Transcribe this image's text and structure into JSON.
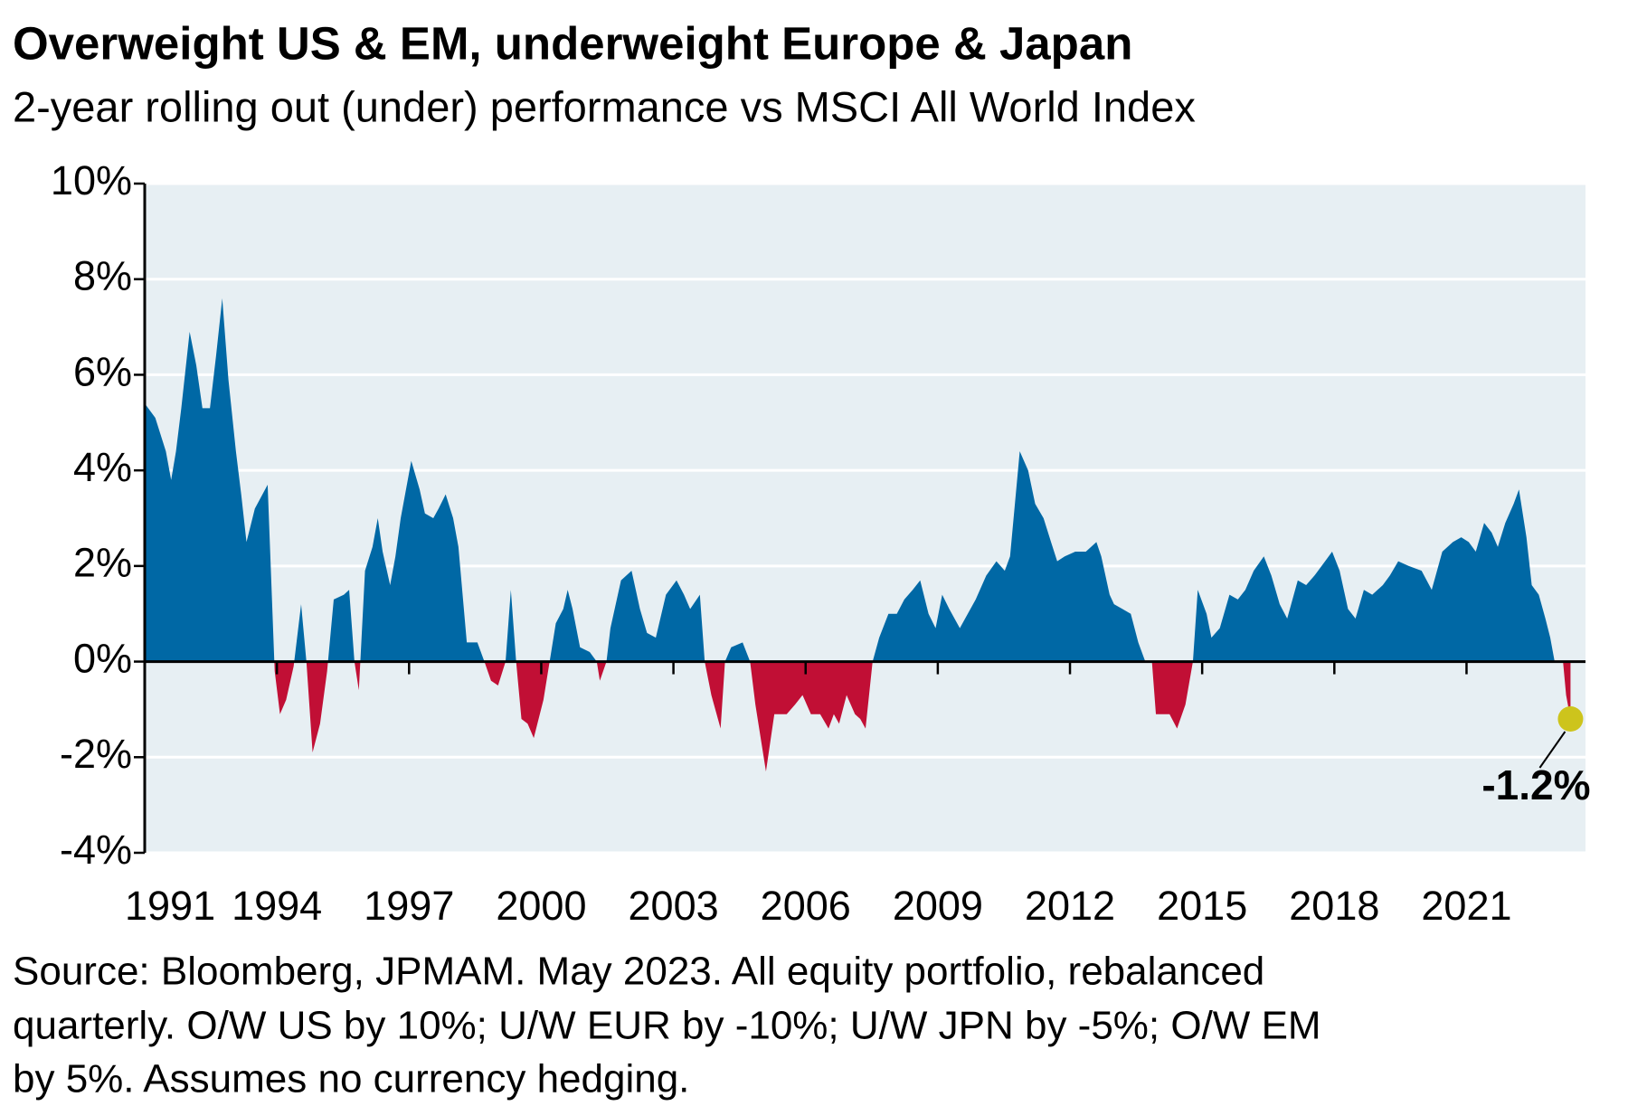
{
  "chart_data": {
    "type": "area",
    "title": "Overweight US & EM, underweight Europe & Japan",
    "subtitle": "2-year rolling out (under) performance vs MSCI All World Index",
    "footnote": [
      "Source: Bloomberg, JPMAM. May 2023. All equity portfolio, rebalanced",
      "quarterly.  O/W US by 10%; U/W EUR by -10%; U/W JPN by -5%; O/W EM",
      "by 5%.  Assumes no currency hedging."
    ],
    "annotation": "-1.2%",
    "annotation_color": "#cdc41c",
    "color": "#0068a5",
    "negative_color": "#c10f35",
    "background": "#e7eff3",
    "grid": true,
    "x": [
      1991.0,
      1991.24,
      1991.48,
      1991.6,
      1991.71,
      1991.83,
      1992.02,
      1992.17,
      1992.31,
      1992.48,
      1992.62,
      1992.76,
      1992.9,
      1993.07,
      1993.19,
      1993.31,
      1993.5,
      1993.79,
      1993.95,
      1994.07,
      1994.21,
      1994.38,
      1994.55,
      1994.67,
      1994.81,
      1994.98,
      1995.14,
      1995.29,
      1995.52,
      1995.64,
      1995.76,
      1995.86,
      1996.0,
      1996.17,
      1996.29,
      1996.4,
      1996.57,
      1996.69,
      1996.81,
      1997.05,
      1997.24,
      1997.36,
      1997.55,
      1997.67,
      1997.83,
      1998.0,
      1998.12,
      1998.31,
      1998.55,
      1998.71,
      1998.86,
      1999.02,
      1999.19,
      1999.31,
      1999.43,
      1999.55,
      1999.69,
      1999.83,
      2000.05,
      2000.19,
      2000.33,
      2000.5,
      2000.6,
      2000.71,
      2000.88,
      2001.1,
      2001.26,
      2001.33,
      2001.48,
      2001.57,
      2001.81,
      2002.05,
      2002.24,
      2002.4,
      2002.6,
      2002.83,
      2003.07,
      2003.24,
      2003.38,
      2003.6,
      2003.71,
      2003.86,
      2004.07,
      2004.17,
      2004.31,
      2004.57,
      2004.74,
      2004.86,
      2005.1,
      2005.29,
      2005.57,
      2005.76,
      2005.93,
      2006.12,
      2006.33,
      2006.52,
      2006.64,
      2006.76,
      2006.93,
      2007.12,
      2007.24,
      2007.36,
      2007.52,
      2007.67,
      2007.88,
      2008.07,
      2008.24,
      2008.43,
      2008.6,
      2008.79,
      2008.95,
      2009.1,
      2009.26,
      2009.5,
      2009.62,
      2009.86,
      2010.1,
      2010.33,
      2010.52,
      2010.64,
      2010.86,
      2011.05,
      2011.21,
      2011.4,
      2011.57,
      2011.71,
      2011.88,
      2012.12,
      2012.36,
      2012.6,
      2012.71,
      2012.9,
      2013.0,
      2013.19,
      2013.38,
      2013.55,
      2013.71,
      2013.86,
      2013.95,
      2014.14,
      2014.26,
      2014.43,
      2014.62,
      2014.79,
      2014.9,
      2015.1,
      2015.21,
      2015.4,
      2015.62,
      2015.81,
      2015.98,
      2016.17,
      2016.4,
      2016.57,
      2016.76,
      2016.93,
      2017.17,
      2017.36,
      2017.55,
      2017.79,
      2017.95,
      2018.12,
      2018.31,
      2018.48,
      2018.67,
      2018.86,
      2019.1,
      2019.26,
      2019.45,
      2019.69,
      2019.98,
      2020.21,
      2020.45,
      2020.69,
      2020.88,
      2021.05,
      2021.21,
      2021.4,
      2021.57,
      2021.71,
      2021.88,
      2022.07,
      2022.19,
      2022.36,
      2022.48,
      2022.64,
      2022.79,
      2022.9,
      2023.0,
      2023.19,
      2023.26,
      2023.36
    ],
    "values": [
      5.4,
      5.1,
      4.4,
      3.8,
      4.4,
      5.3,
      6.9,
      6.2,
      5.3,
      5.3,
      6.4,
      7.6,
      5.9,
      4.4,
      3.5,
      2.5,
      3.2,
      3.7,
      -0.2,
      -1.1,
      -0.8,
      -0.1,
      1.2,
      0.0,
      -1.9,
      -1.3,
      -0.2,
      1.3,
      1.4,
      1.5,
      0.0,
      -0.6,
      1.9,
      2.4,
      3.0,
      2.3,
      1.6,
      2.2,
      3.0,
      4.2,
      3.6,
      3.1,
      3.0,
      3.2,
      3.5,
      3.0,
      2.4,
      0.4,
      0.4,
      0.0,
      -0.4,
      -0.5,
      0.0,
      1.5,
      0.0,
      -1.2,
      -1.3,
      -1.6,
      -0.8,
      0.0,
      0.8,
      1.1,
      1.5,
      1.1,
      0.3,
      0.2,
      0.0,
      -0.4,
      0.0,
      0.7,
      1.7,
      1.9,
      1.1,
      0.6,
      0.5,
      1.4,
      1.7,
      1.4,
      1.1,
      1.4,
      0.0,
      -0.7,
      -1.4,
      0.0,
      0.3,
      0.4,
      0.0,
      -0.9,
      -2.3,
      -1.1,
      -1.1,
      -0.9,
      -0.7,
      -1.1,
      -1.1,
      -1.4,
      -1.1,
      -1.3,
      -0.7,
      -1.1,
      -1.2,
      -1.4,
      0.0,
      0.5,
      1.0,
      1.0,
      1.3,
      1.5,
      1.7,
      1.0,
      0.7,
      1.4,
      1.1,
      0.7,
      0.9,
      1.3,
      1.8,
      2.1,
      1.9,
      2.2,
      4.4,
      4.0,
      3.3,
      3.0,
      2.5,
      2.1,
      2.2,
      2.3,
      2.3,
      2.5,
      2.2,
      1.4,
      1.2,
      1.1,
      1.0,
      0.4,
      0.0,
      0.0,
      -1.1,
      -1.1,
      -1.1,
      -1.4,
      -0.9,
      0.0,
      1.5,
      1.0,
      0.5,
      0.7,
      1.4,
      1.3,
      1.5,
      1.9,
      2.2,
      1.8,
      1.2,
      0.9,
      1.7,
      1.6,
      1.8,
      2.1,
      2.3,
      1.9,
      1.1,
      0.9,
      1.5,
      1.4,
      1.6,
      1.8,
      2.1,
      2.0,
      1.9,
      1.5,
      2.3,
      2.5,
      2.6,
      2.5,
      2.3,
      2.9,
      2.7,
      2.4,
      2.9,
      3.3,
      3.6,
      2.6,
      1.6,
      1.4,
      0.9,
      0.5,
      0.0,
      0.0,
      -0.7,
      -1.2
    ],
    "xlim": [
      1991,
      2023.7
    ],
    "xticks": [
      1991,
      1994,
      1997,
      2000,
      2003,
      2006,
      2009,
      2012,
      2015,
      2018,
      2021
    ],
    "ylim": [
      -4,
      10
    ],
    "yticks": [
      {
        "value": -4,
        "label": "-4%"
      },
      {
        "value": -2,
        "label": "-2%"
      },
      {
        "value": 0,
        "label": "0%"
      },
      {
        "value": 2,
        "label": "2%"
      },
      {
        "value": 4,
        "label": "4%"
      },
      {
        "value": 6,
        "label": "6%"
      },
      {
        "value": 8,
        "label": "8%"
      },
      {
        "value": 10,
        "label": "10%"
      }
    ]
  }
}
